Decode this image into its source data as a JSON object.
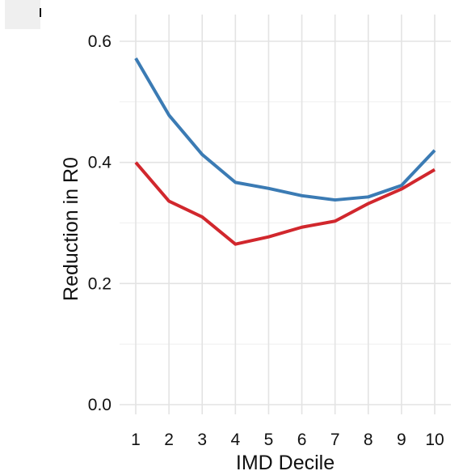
{
  "chart_data": {
    "type": "line",
    "title": "",
    "xlabel": "IMD Decile",
    "ylabel": "Reduction in R0",
    "x": [
      1,
      2,
      3,
      4,
      5,
      6,
      7,
      8,
      9,
      10
    ],
    "xticks": [
      "1",
      "2",
      "3",
      "4",
      "5",
      "6",
      "7",
      "8",
      "9",
      "10"
    ],
    "yticks": [
      "0.0",
      "0.2",
      "0.4",
      "0.6"
    ],
    "ylim": [
      0,
      0.6
    ],
    "grid": true,
    "legend": "none",
    "series": [
      {
        "color": "#3b7bb4",
        "values": [
          0.572,
          0.478,
          0.413,
          0.367,
          0.357,
          0.345,
          0.338,
          0.343,
          0.362,
          0.42
        ]
      },
      {
        "color": "#d1272d",
        "values": [
          0.4,
          0.336,
          0.31,
          0.265,
          0.277,
          0.293,
          0.303,
          0.332,
          0.356,
          0.388
        ]
      }
    ]
  }
}
